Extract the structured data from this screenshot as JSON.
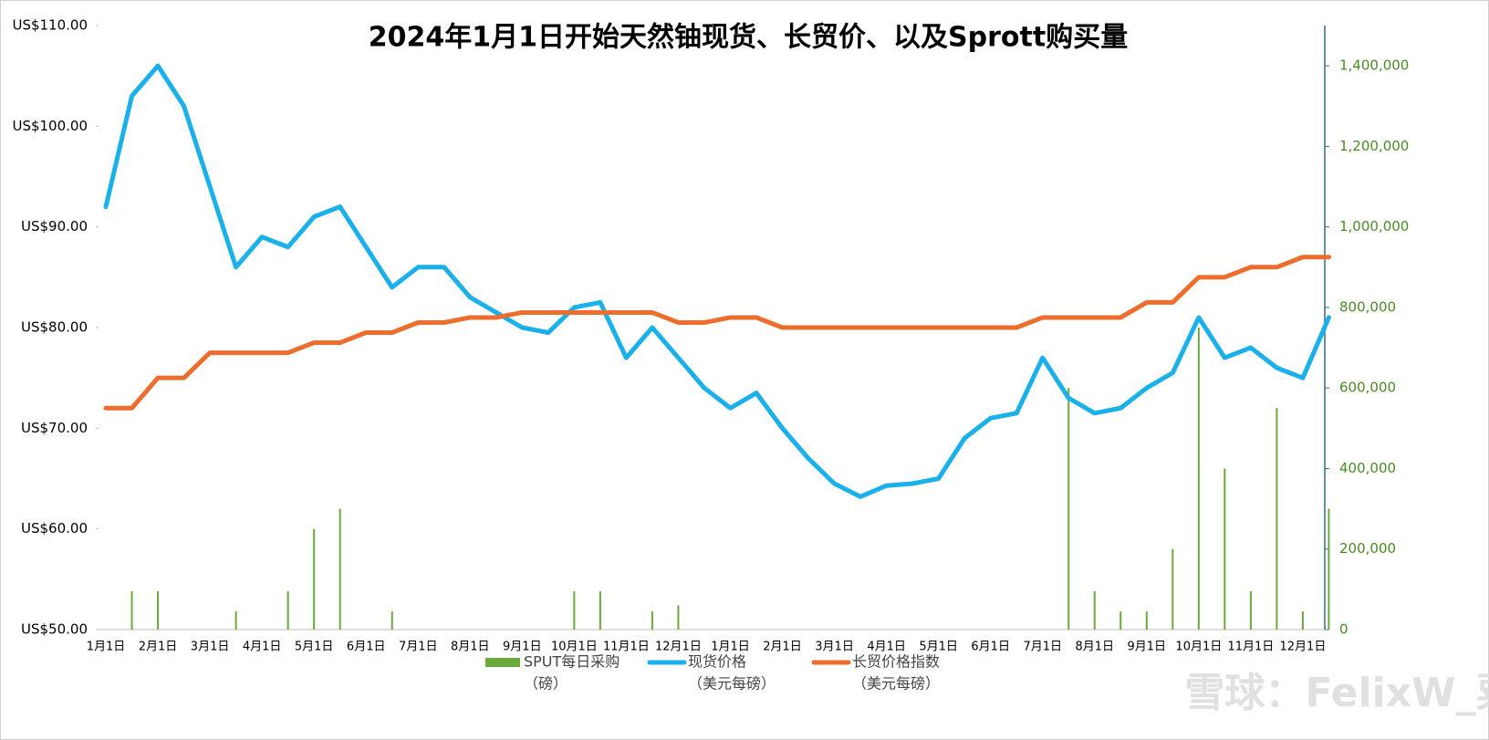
{
  "chart_data": {
    "type": "line",
    "title": "2024年1月1日开始天然铀现货、长贸价、以及Sprott购买量",
    "categories": [
      "1月1日",
      null,
      "2月1日",
      null,
      "3月1日",
      null,
      "4月1日",
      null,
      "5月1日",
      null,
      "6月1日",
      null,
      "7月1日",
      null,
      "8月1日",
      null,
      "9月1日",
      null,
      "10月1日",
      null,
      "11月1日",
      null,
      "12月1日",
      null,
      "1月1日",
      null,
      "2月1日",
      null,
      "3月1日",
      null,
      "4月1日",
      null,
      "5月1日",
      null,
      "6月1日",
      null,
      "7月1日",
      null,
      "8月1日",
      null,
      "9月1日",
      null,
      "10月1日",
      null,
      "11月1日",
      null,
      "12月1日",
      null
    ],
    "series": [
      {
        "name": "SPUT每日采购",
        "unit": "（磅）",
        "type": "bar",
        "axis": "y2",
        "color": "#6aaa3a",
        "values": [
          0,
          95000,
          95000,
          0,
          0,
          45000,
          0,
          95000,
          250000,
          300000,
          0,
          45000,
          0,
          0,
          0,
          0,
          0,
          0,
          95000,
          95000,
          0,
          45000,
          60000,
          0,
          0,
          0,
          0,
          0,
          0,
          0,
          0,
          0,
          0,
          0,
          0,
          0,
          0,
          600000,
          95000,
          45000,
          45000,
          200000,
          750000,
          400000,
          95000,
          550000,
          45000,
          300000
        ]
      },
      {
        "name": "现货价格",
        "unit": "（美元每磅）",
        "type": "line",
        "color": "#1ab0ea",
        "values": [
          92,
          103,
          106,
          102,
          94,
          86,
          89,
          88,
          91,
          92,
          88,
          84,
          86,
          86,
          83,
          81.5,
          80,
          79.5,
          82,
          82.5,
          77,
          80,
          77,
          74,
          72,
          73.5,
          70,
          67,
          64.5,
          63.2,
          64.3,
          64.5,
          65,
          69,
          71,
          71.5,
          77,
          73,
          71.5,
          72,
          74,
          75.5,
          81,
          77,
          78,
          76,
          75,
          81
        ]
      },
      {
        "name": "长贸价格指数",
        "unit": "（美元每磅）",
        "type": "line",
        "color": "#ed6d2d",
        "values": [
          72,
          72,
          75,
          75,
          77.5,
          77.5,
          77.5,
          77.5,
          78.5,
          78.5,
          79.5,
          79.5,
          80.5,
          80.5,
          81,
          81,
          81.5,
          81.5,
          81.5,
          81.5,
          81.5,
          81.5,
          80.5,
          80.5,
          81,
          81,
          80,
          80,
          80,
          80,
          80,
          80,
          80,
          80,
          80,
          80,
          81,
          81,
          81,
          81,
          82.5,
          82.5,
          85,
          85,
          86,
          86,
          87,
          87
        ]
      }
    ],
    "ylim": [
      50,
      110
    ],
    "yticks": [
      {
        "value": 50,
        "label": "US$50.00"
      },
      {
        "value": 60,
        "label": "US$60.00"
      },
      {
        "value": 70,
        "label": "US$70.00"
      },
      {
        "value": 80,
        "label": "US$80.00"
      },
      {
        "value": 90,
        "label": "US$90.00"
      },
      {
        "value": 100,
        "label": "US$100.00"
      },
      {
        "value": 110,
        "label": "US$110.00"
      }
    ],
    "y2lim": [
      0,
      1500000
    ],
    "y2ticks": [
      0,
      {
        "value": 200000,
        "label": "200,000"
      },
      {
        "value": 400000,
        "label": "400,000"
      },
      {
        "value": 600000,
        "label": "600,000"
      },
      {
        "value": 800000,
        "label": "800,000"
      },
      {
        "value": 1000000,
        "label": "1,000,000"
      },
      {
        "value": 1200000,
        "label": "1,200,000"
      },
      {
        "value": 1400000,
        "label": "1,400,000"
      }
    ],
    "watermark": "雪球：FelixW_粟"
  }
}
